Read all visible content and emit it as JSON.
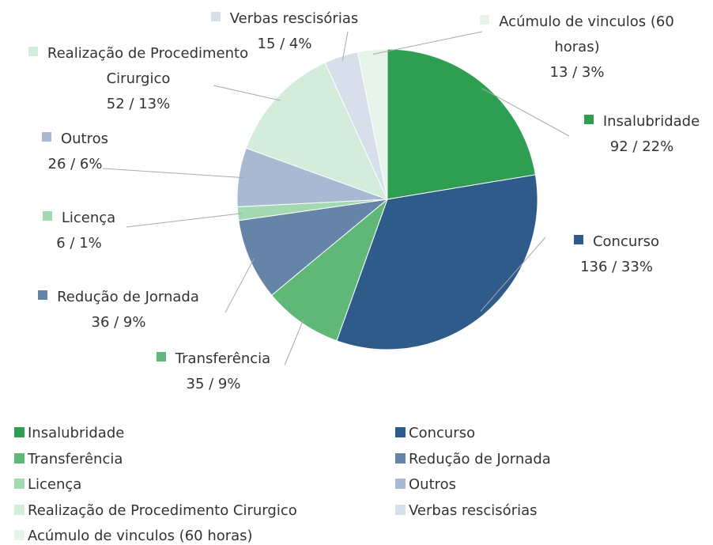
{
  "chart_data": {
    "type": "pie",
    "categories": [
      "Insalubridade",
      "Concurso",
      "Transferência",
      "Redução de Jornada",
      "Licença",
      "Outros",
      "Realização de Procedimento Cirurgico",
      "Verbas rescisórias",
      "Acúmulo de vinculos (60 horas)"
    ],
    "values": [
      92,
      136,
      35,
      36,
      6,
      26,
      52,
      15,
      13
    ],
    "value_labels": [
      "92 / 22%",
      "136 / 33%",
      "35 / 9%",
      "36 / 9%",
      "6 / 1%",
      "26 / 6%",
      "52 / 13%",
      "15 / 4%",
      "13 / 3%"
    ],
    "colors": [
      "#2e9e52",
      "#2e5b8a",
      "#5fb877",
      "#6683a8",
      "#a3d9b1",
      "#a8b9d1",
      "#d4ecdb",
      "#d6dfea",
      "#e6f4ea"
    ],
    "legend": "bottom"
  }
}
